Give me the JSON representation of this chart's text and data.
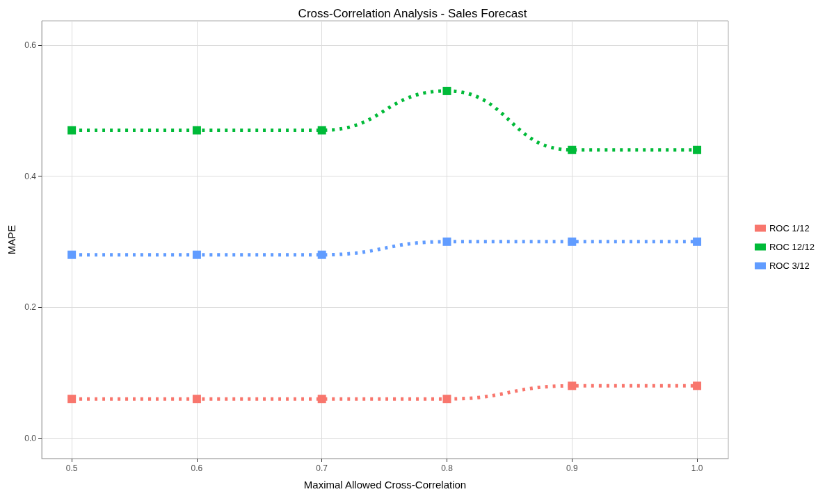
{
  "chart_data": {
    "type": "line",
    "title": "Cross-Correlation Analysis - Sales Forecast",
    "xlabel": "Maximal Allowed Cross-Correlation",
    "ylabel": "MAPE",
    "x": [
      0.5,
      0.6,
      0.7,
      0.8,
      0.9,
      1.0
    ],
    "series": [
      {
        "name": "ROC 1/12",
        "color": "#f8766d",
        "values": [
          0.06,
          0.06,
          0.06,
          0.06,
          0.08,
          0.08
        ]
      },
      {
        "name": "ROC 12/12",
        "color": "#00ba38",
        "values": [
          0.47,
          0.47,
          0.47,
          0.53,
          0.44,
          0.44
        ]
      },
      {
        "name": "ROC 3/12",
        "color": "#619cff",
        "values": [
          0.28,
          0.28,
          0.28,
          0.3,
          0.3,
          0.3
        ]
      }
    ],
    "xlim": [
      0.476,
      1.025
    ],
    "xticks": [
      0.5,
      0.6,
      0.7,
      0.8,
      0.9,
      {
        "value": 1,
        "label": "1.0"
      }
    ],
    "ylim": [
      -0.031,
      0.637
    ],
    "yticks": [
      {
        "value": 0,
        "label": "0.0"
      },
      {
        "value": 0.2,
        "label": "0.2"
      },
      {
        "value": 0.4,
        "label": "0.4"
      },
      {
        "value": 0.6,
        "label": "0.6"
      }
    ],
    "grid": true,
    "legend": "right",
    "marker": "square",
    "line_style": "dotted"
  }
}
